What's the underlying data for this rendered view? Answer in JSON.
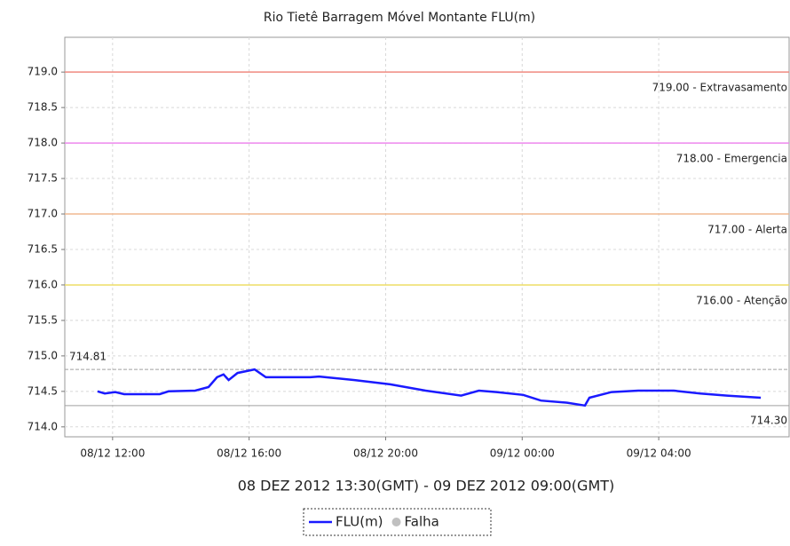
{
  "chart_data": {
    "type": "line",
    "title": "Rio Tietê Barragem Móvel Montante  FLU(m)",
    "x_label": "08 DEZ 2012 13:30(GMT) - 09 DEZ 2012 09:00(GMT)",
    "x": [
      11.56,
      11.77,
      12.08,
      12.34,
      13.38,
      13.64,
      14.42,
      14.81,
      15.06,
      15.25,
      15.4,
      15.66,
      16.16,
      16.49,
      17.79,
      18.05,
      19.09,
      20.13,
      21.17,
      22.21,
      22.73,
      23.25,
      24.03,
      24.55,
      25.32,
      25.84,
      25.97,
      26.62,
      27.4,
      28.44,
      29.22,
      30.0,
      30.99
    ],
    "series": [
      {
        "name": "FLU(m)",
        "color": "#1a1aff",
        "values": [
          714.5,
          714.47,
          714.49,
          714.46,
          714.46,
          714.5,
          714.51,
          714.56,
          714.7,
          714.74,
          714.66,
          714.76,
          714.81,
          714.7,
          714.7,
          714.71,
          714.66,
          714.6,
          714.51,
          714.44,
          714.51,
          714.49,
          714.45,
          714.37,
          714.34,
          714.3,
          714.41,
          714.49,
          714.51,
          714.51,
          714.47,
          714.44,
          714.41
        ]
      }
    ],
    "legend_items": [
      {
        "name": "Falha",
        "color": "#c0c0c0"
      }
    ],
    "xlim": [
      10.6,
      31.82
    ],
    "xticks": [
      {
        "value": 12,
        "label": "08/12 12:00"
      },
      {
        "value": 16,
        "label": "08/12 16:00"
      },
      {
        "value": 20,
        "label": "08/12 20:00"
      },
      {
        "value": 24,
        "label": "09/12 00:00"
      },
      {
        "value": 28,
        "label": "09/12 04:00"
      }
    ],
    "ylim": [
      713.86,
      719.49
    ],
    "yticks": [
      {
        "value": 714,
        "label": "714.0"
      },
      714.5,
      {
        "value": 715,
        "label": "715.0"
      },
      715.5,
      {
        "value": 716,
        "label": "716.0"
      },
      716.5,
      {
        "value": 717,
        "label": "717.0"
      },
      717.5,
      {
        "value": 718,
        "label": "718.0"
      },
      718.5,
      {
        "value": 719,
        "label": "719.0"
      }
    ],
    "grid": true,
    "thresholds": [
      {
        "value": 719,
        "label": "719.00 - Extravasamento",
        "color": "#f08a80"
      },
      {
        "value": 718,
        "label": "718.00 - Emergencia",
        "color": "#ee88ee"
      },
      {
        "value": 717,
        "label": "717.00 - Alerta",
        "color": "#f0b890"
      },
      {
        "value": 716,
        "label": "716.00 - Atenção",
        "color": "#eedd66"
      }
    ],
    "max_line": {
      "value": 714.81,
      "label": "714.81",
      "color": "#a0a0a0"
    },
    "min_line": {
      "value": 714.3,
      "label": "714.30",
      "color": "#a0a0a0"
    }
  }
}
